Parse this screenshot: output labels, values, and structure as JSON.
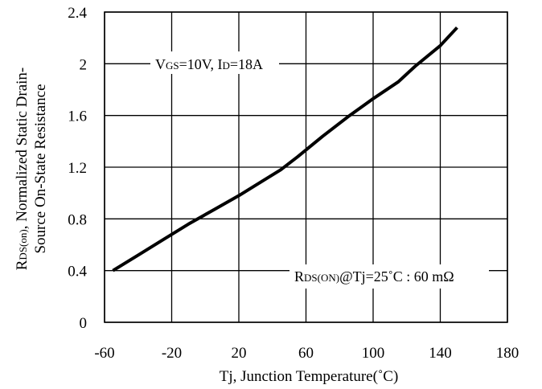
{
  "chart_data": {
    "type": "line",
    "xlabel": "Tj, Junction Temperature(˚C)",
    "ylabel": {
      "line1_main": "R",
      "line1_sub": "DS(on)",
      "line1_rest": ", Normalized Static Drain-",
      "line2": "Source On-State Resistance"
    },
    "xlim": [
      -60,
      180
    ],
    "ylim": [
      0,
      2.4
    ],
    "x_ticks": [
      -60,
      -20,
      20,
      60,
      100,
      140,
      180
    ],
    "x_tick_labels": [
      "-60",
      "-20",
      "20",
      "60",
      "100",
      "140",
      "180"
    ],
    "y_ticks": [
      0,
      0.4,
      0.8,
      1.2,
      1.6,
      2.0,
      2.4
    ],
    "y_tick_labels": [
      "0",
      "0.4",
      "0.8",
      "1.2",
      "1.6",
      "2",
      "2.4"
    ],
    "grid": true,
    "series": [
      {
        "x": [
          -55,
          -40,
          -25,
          -10,
          5,
          20,
          35,
          45,
          55,
          70,
          85,
          100,
          115,
          125,
          140,
          150
        ],
        "y": [
          0.4,
          0.52,
          0.64,
          0.76,
          0.87,
          0.98,
          1.1,
          1.18,
          1.28,
          1.44,
          1.59,
          1.73,
          1.86,
          1.98,
          2.14,
          2.28
        ]
      }
    ],
    "annotations": [
      {
        "parts": [
          {
            "t": "V",
            "sub": false
          },
          {
            "t": "GS",
            "sub": true
          },
          {
            "t": "=10V, I",
            "sub": false
          },
          {
            "t": "D",
            "sub": true
          },
          {
            "t": "=18A",
            "sub": false
          }
        ]
      },
      {
        "parts": [
          {
            "t": "R",
            "sub": false
          },
          {
            "t": "DS(ON)",
            "sub": true
          },
          {
            "t": "@Tj=25˚C : 60 mΩ",
            "sub": false
          }
        ]
      }
    ]
  }
}
